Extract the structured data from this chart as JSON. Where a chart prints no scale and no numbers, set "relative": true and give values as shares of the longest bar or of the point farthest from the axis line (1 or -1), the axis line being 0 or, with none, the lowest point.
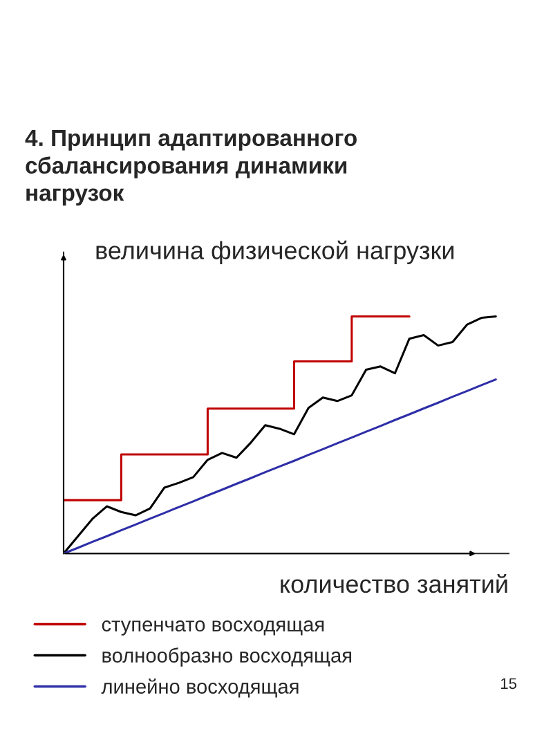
{
  "chart_data": {
    "type": "line",
    "relative": true,
    "title": "4. Принцип адаптированного\nсбалансирования динамики\nнагрузок",
    "ylabel": "величина физической нагрузки",
    "xlabel": "количество занятий",
    "annotations": [
      "15"
    ],
    "legend": "bottom",
    "categories": [
      null,
      null,
      null,
      null,
      null,
      null,
      null,
      null,
      null,
      null,
      null,
      null,
      null,
      null,
      null,
      null,
      null,
      null,
      null,
      null,
      null,
      null,
      null,
      null,
      null,
      null,
      null,
      null,
      null,
      null,
      null
    ],
    "series": [
      {
        "name": "ступенчато восходящая",
        "type": "step",
        "color": "#c00000",
        "values": [
          0.225,
          0.225,
          0.225,
          0.225,
          0.418,
          0.418,
          0.418,
          0.418,
          0.418,
          0.418,
          0.611,
          0.611,
          0.611,
          0.611,
          0.611,
          0.611,
          0.81,
          0.81,
          0.81,
          0.81,
          1.0,
          1.0,
          1.0,
          1.0,
          1.0,
          null,
          null,
          null,
          null,
          null,
          null
        ]
      },
      {
        "name": "волнообразно восходящая",
        "color": "#000000",
        "values": [
          0,
          0.073,
          0.146,
          0.199,
          0.175,
          0.161,
          0.19,
          0.278,
          0.298,
          0.322,
          0.395,
          0.424,
          0.404,
          0.468,
          0.541,
          0.526,
          0.503,
          0.614,
          0.658,
          0.643,
          0.667,
          0.775,
          0.789,
          0.76,
          0.906,
          0.921,
          0.877,
          0.892,
          0.965,
          0.994,
          1.0
        ]
      },
      {
        "name": "линейно восходящая",
        "color": "#2e2ea8",
        "values": [
          0,
          0.024,
          0.049,
          0.073,
          0.098,
          0.122,
          0.147,
          0.171,
          0.196,
          0.22,
          0.245,
          0.269,
          0.294,
          0.318,
          0.343,
          0.367,
          0.391,
          0.416,
          0.44,
          0.465,
          0.489,
          0.514,
          0.538,
          0.563,
          0.587,
          0.612,
          0.636,
          0.661,
          0.685,
          0.71,
          0.734
        ]
      }
    ]
  }
}
